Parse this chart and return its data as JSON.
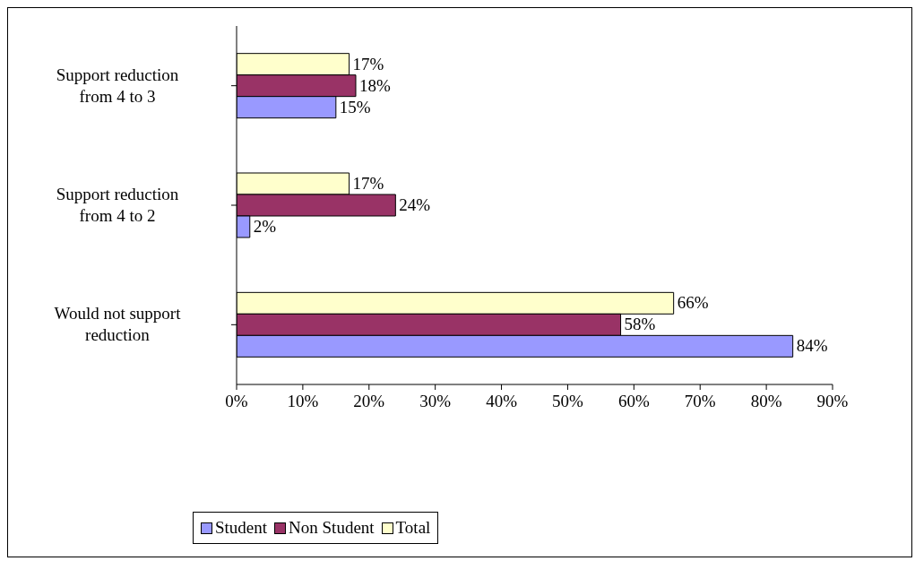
{
  "chart_data": {
    "type": "bar",
    "orientation": "horizontal",
    "categories": [
      "Support reduction from 4 to 3",
      "Support reduction from 4 to 2",
      "Would not support reduction"
    ],
    "series": [
      {
        "name": "Student",
        "color": "#9999ff",
        "values": [
          15,
          2,
          84
        ],
        "value_labels": [
          "15%",
          "2%",
          "84%"
        ]
      },
      {
        "name": "Non Student",
        "color": "#993366",
        "values": [
          18,
          24,
          58
        ],
        "value_labels": [
          "18%",
          "24%",
          "58%"
        ]
      },
      {
        "name": "Total",
        "color": "#ffffcc",
        "values": [
          17,
          17,
          66
        ],
        "value_labels": [
          "17%",
          "17%",
          "66%"
        ]
      }
    ],
    "xlim": [
      0,
      90
    ],
    "xticks": [
      {
        "value": 0,
        "label": "0%"
      },
      {
        "value": 10,
        "label": "10%"
      },
      {
        "value": 20,
        "label": "20%"
      },
      {
        "value": 30,
        "label": "30%"
      },
      {
        "value": 40,
        "label": "40%"
      },
      {
        "value": 50,
        "label": "50%"
      },
      {
        "value": 60,
        "label": "60%"
      },
      {
        "value": 70,
        "label": "70%"
      },
      {
        "value": 80,
        "label": "80%"
      },
      {
        "value": 90,
        "label": "90%"
      }
    ],
    "grid": false,
    "legend": "bottom left"
  }
}
